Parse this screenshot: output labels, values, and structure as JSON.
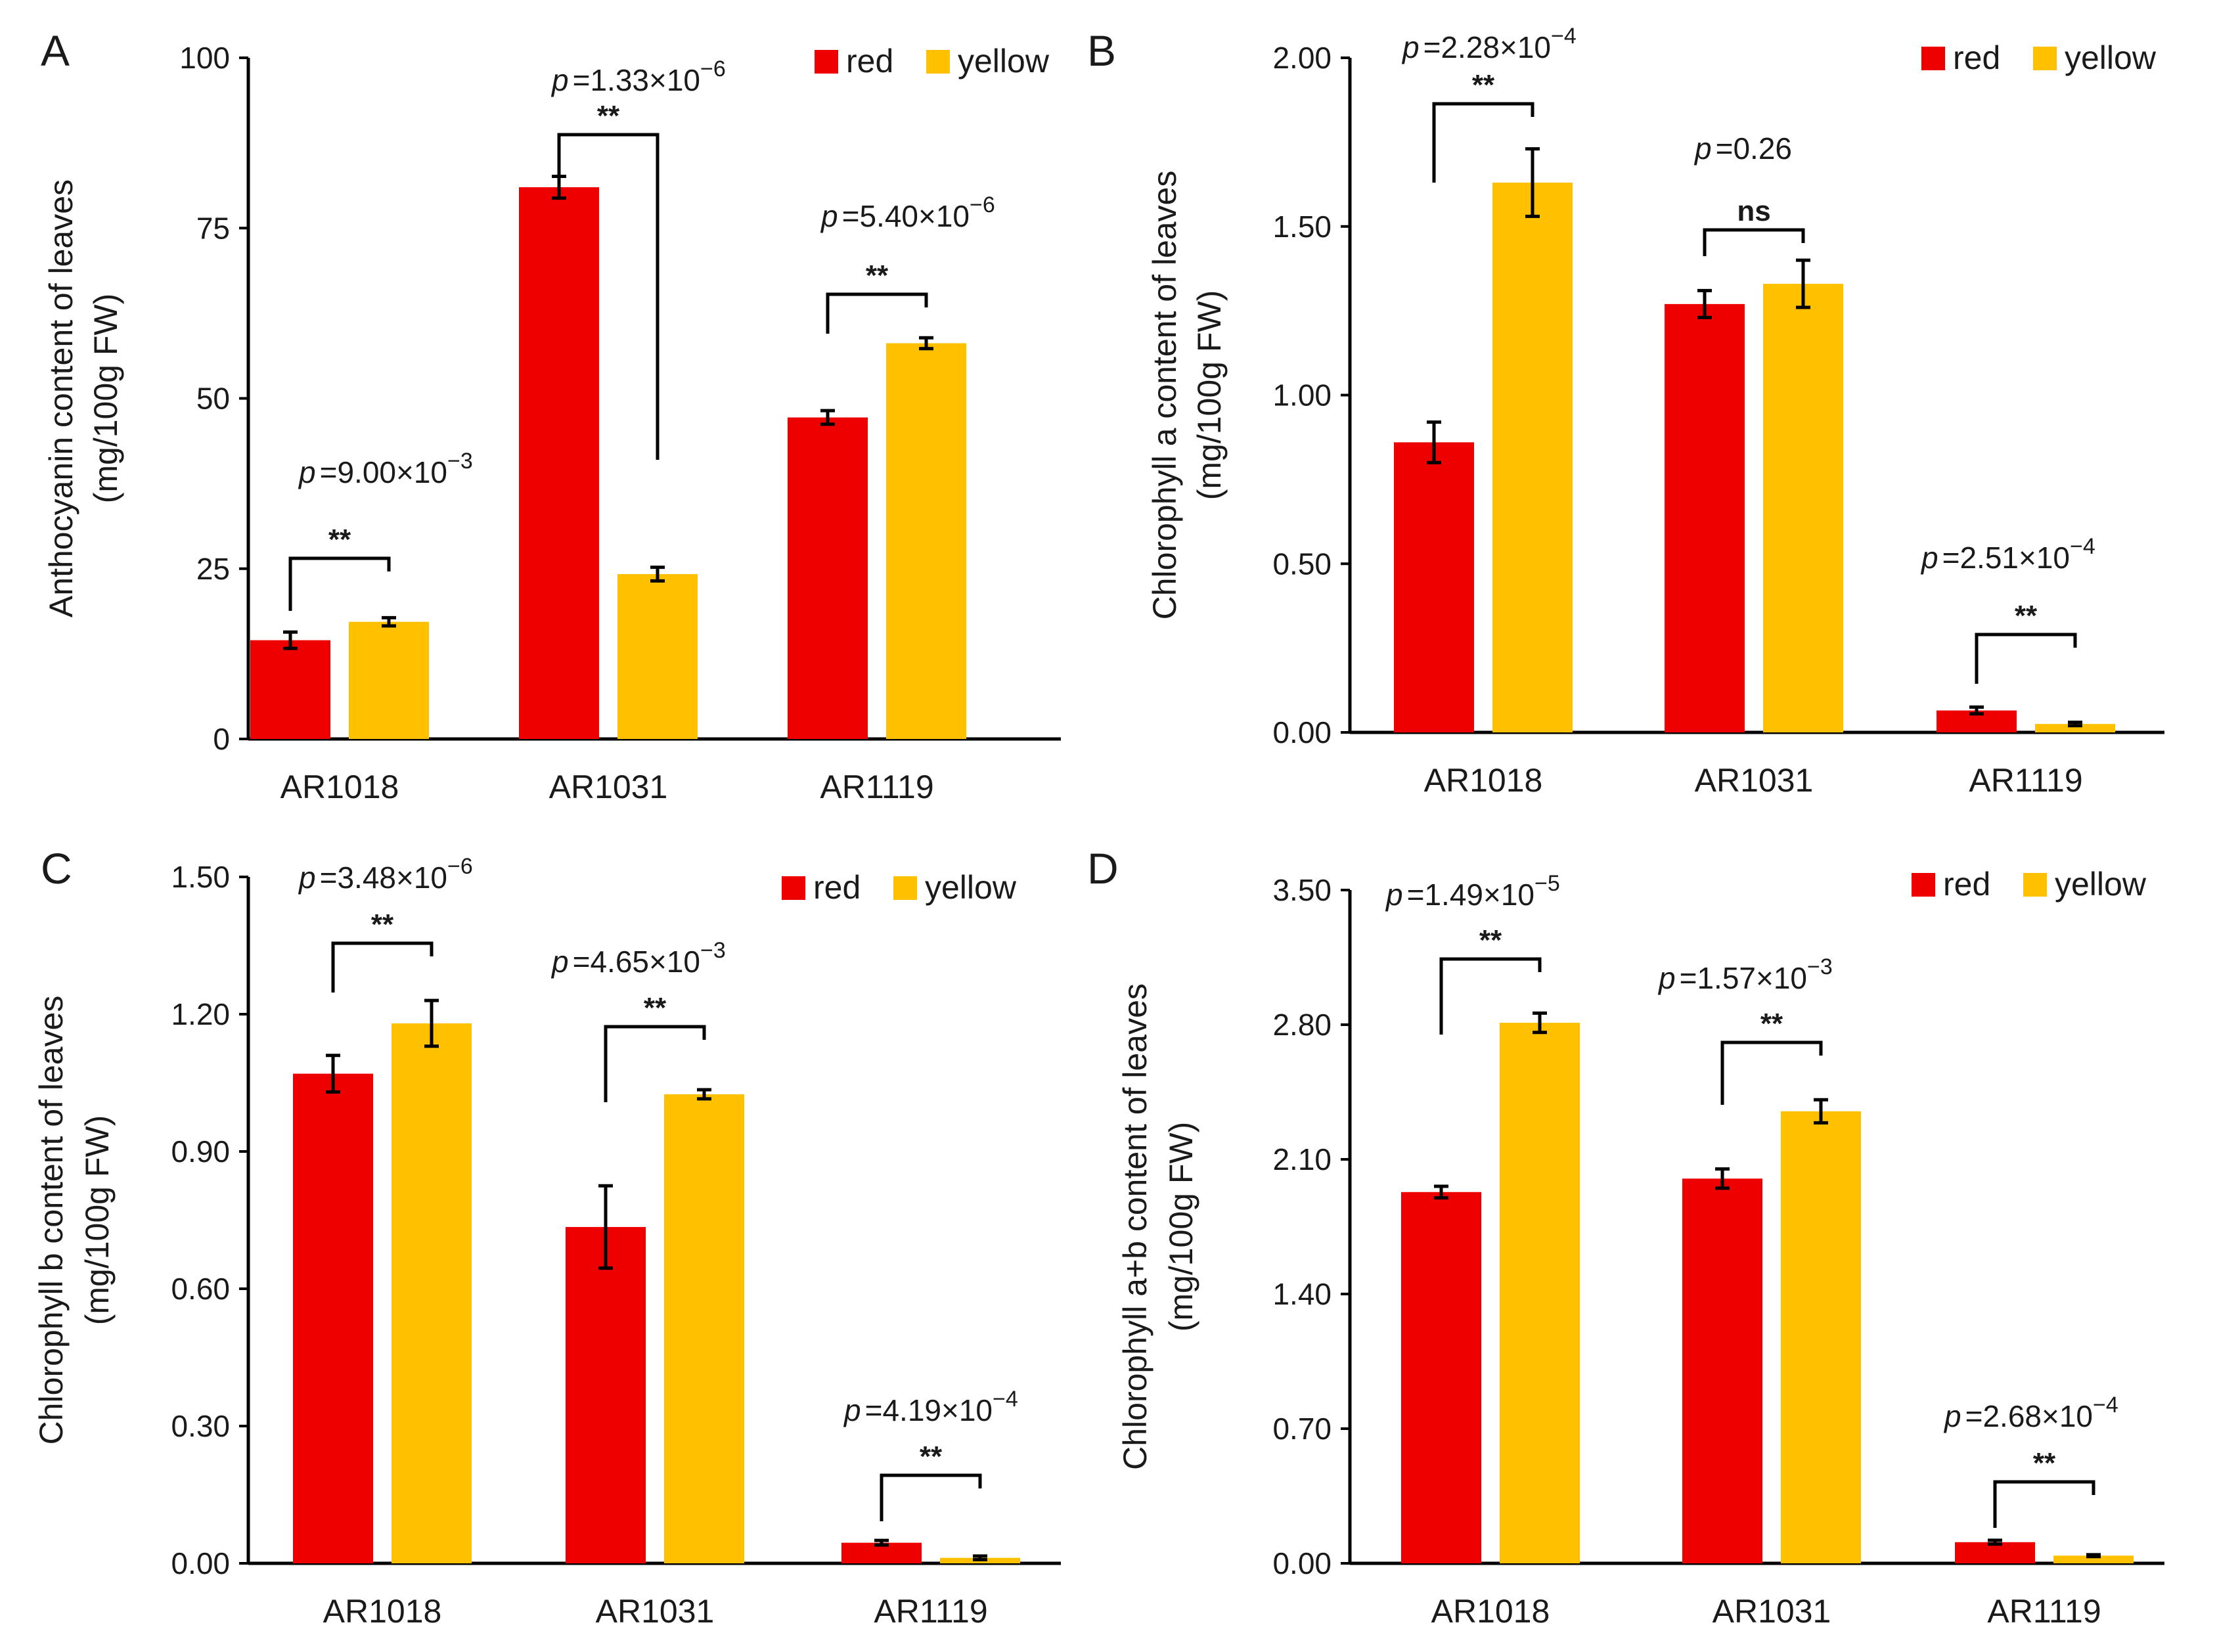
{
  "colors": {
    "red": "#EE0000",
    "yellow": "#FFC000",
    "axis": "#000000",
    "text": "#1a1a1a"
  },
  "legend": {
    "red_label": "red",
    "yellow_label": "yellow"
  },
  "p_symbol": "p",
  "chart_data": [
    {
      "panel": "A",
      "type": "bar",
      "ylabel_line1": "Anthocyanin content of leaves",
      "ylabel_line2": "(mg/100g FW)",
      "ylim": [
        0,
        100
      ],
      "yticks": [
        "0",
        "25",
        "50",
        "75",
        "100"
      ],
      "categories": [
        "AR1018",
        "AR1031",
        "AR1119"
      ],
      "series": [
        {
          "name": "red",
          "values": [
            14.5,
            81,
            47.2
          ],
          "errors": [
            1.2,
            1.6,
            1.0
          ]
        },
        {
          "name": "yellow",
          "values": [
            17.2,
            24.2,
            58.1
          ],
          "errors": [
            0.6,
            1.0,
            0.8
          ]
        }
      ],
      "comparisons": [
        {
          "p_value": "=9.00×10",
          "exponent": "−3",
          "sig": "**"
        },
        {
          "p_value": "=1.33×10",
          "exponent": "−6",
          "sig": "**"
        },
        {
          "p_value": "=5.40×10",
          "exponent": "−6",
          "sig": "**"
        }
      ]
    },
    {
      "panel": "B",
      "type": "bar",
      "ylabel_line1": "Chlorophyll a content of leaves",
      "ylabel_line2": "(mg/100g FW)",
      "ylim": [
        0,
        2.0
      ],
      "yticks": [
        "0.00",
        "0.50",
        "1.00",
        "1.50",
        "2.00"
      ],
      "categories": [
        "AR1018",
        "AR1031",
        "AR1119"
      ],
      "series": [
        {
          "name": "red",
          "values": [
            0.86,
            1.27,
            0.065
          ],
          "errors": [
            0.06,
            0.04,
            0.01
          ]
        },
        {
          "name": "yellow",
          "values": [
            1.63,
            1.33,
            0.025
          ],
          "errors": [
            0.1,
            0.07,
            0.005
          ]
        }
      ],
      "comparisons": [
        {
          "p_value": "=2.28×10",
          "exponent": "−4",
          "sig": "**"
        },
        {
          "p_value": "=0.26",
          "exponent": "",
          "sig": "ns"
        },
        {
          "p_value": "=2.51×10",
          "exponent": "−4",
          "sig": "**"
        }
      ]
    },
    {
      "panel": "C",
      "type": "bar",
      "ylabel_line1": "Chlorophyll b content of leaves",
      "ylabel_line2": "(mg/100g FW)",
      "ylim": [
        0,
        1.5
      ],
      "yticks": [
        "0.00",
        "0.30",
        "0.60",
        "0.90",
        "1.20",
        "1.50"
      ],
      "categories": [
        "AR1018",
        "AR1031",
        "AR1119"
      ],
      "series": [
        {
          "name": "red",
          "values": [
            1.07,
            0.735,
            0.045
          ],
          "errors": [
            0.04,
            0.09,
            0.005
          ]
        },
        {
          "name": "yellow",
          "values": [
            1.18,
            1.025,
            0.012
          ],
          "errors": [
            0.05,
            0.01,
            0.004
          ]
        }
      ],
      "comparisons": [
        {
          "p_value": "=3.48×10",
          "exponent": "−6",
          "sig": "**"
        },
        {
          "p_value": "=4.65×10",
          "exponent": "−3",
          "sig": "**"
        },
        {
          "p_value": "=4.19×10",
          "exponent": "−4",
          "sig": "**"
        }
      ]
    },
    {
      "panel": "D",
      "type": "bar",
      "ylabel_line1": "Chlorophyll a+b content of leaves",
      "ylabel_line2": "(mg/100g FW)",
      "ylim": [
        0,
        3.5
      ],
      "yticks": [
        "0.00",
        "0.70",
        "1.40",
        "2.10",
        "2.80",
        "3.50"
      ],
      "categories": [
        "AR1018",
        "AR1031",
        "AR1119"
      ],
      "series": [
        {
          "name": "red",
          "values": [
            1.93,
            2.0,
            0.11
          ],
          "errors": [
            0.03,
            0.05,
            0.01
          ]
        },
        {
          "name": "yellow",
          "values": [
            2.81,
            2.35,
            0.04
          ],
          "errors": [
            0.05,
            0.06,
            0.005
          ]
        }
      ],
      "comparisons": [
        {
          "p_value": "=1.49×10",
          "exponent": "−5",
          "sig": "**"
        },
        {
          "p_value": "=1.57×10",
          "exponent": "−3",
          "sig": "**"
        },
        {
          "p_value": "=2.68×10",
          "exponent": "−4",
          "sig": "**"
        }
      ]
    }
  ]
}
